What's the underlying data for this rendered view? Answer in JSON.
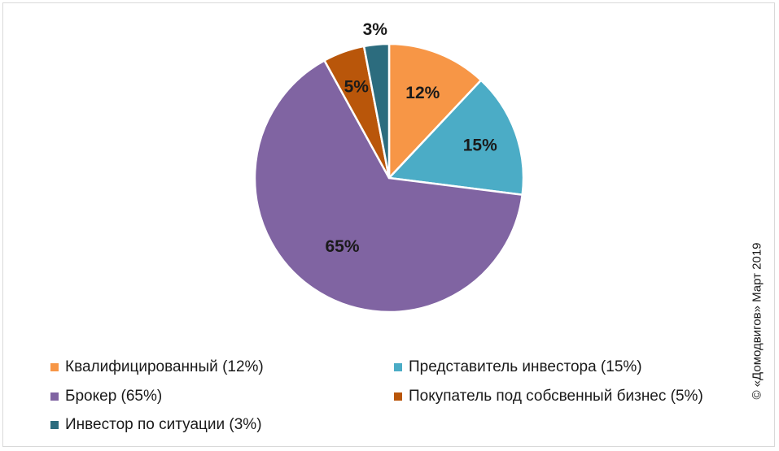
{
  "chart_data": {
    "type": "pie",
    "title": "",
    "start_angle_deg": 0,
    "direction": "clockwise",
    "slices": [
      {
        "label": "12%",
        "legend": "Квалифицированный (12%)",
        "value": 12,
        "color": "#F79646"
      },
      {
        "label": "15%",
        "legend": "Представитель инвестора (15%)",
        "value": 15,
        "color": "#4BACC6"
      },
      {
        "label": "65%",
        "legend": "Брокер (65%)",
        "value": 65,
        "color": "#8064A2"
      },
      {
        "label": "5%",
        "legend": "Покупатель под собсвенный бизнес (5%)",
        "value": 5,
        "color": "#B9560A"
      },
      {
        "label": "3%",
        "legend": "Инвестор по ситуации (3%)",
        "value": 3,
        "color": "#2C6C7E"
      }
    ],
    "legend_position": "bottom"
  },
  "copyright": "© «Домодвигов» Март 2019"
}
